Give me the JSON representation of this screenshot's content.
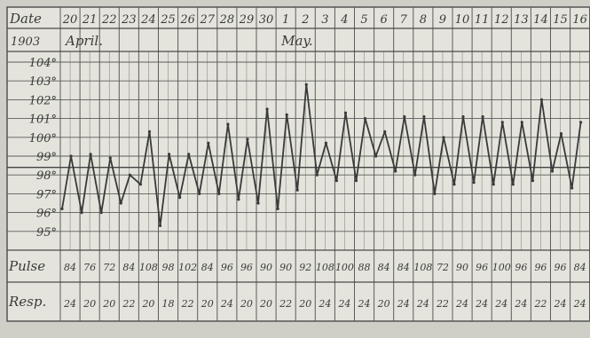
{
  "chart_data": {
    "type": "line",
    "row_labels": {
      "date": "Date",
      "year": "1903",
      "pulse": "Pulse",
      "resp": "Resp."
    },
    "months": [
      {
        "name": "April.",
        "start_index": 0
      },
      {
        "name": "May.",
        "start_index": 11
      }
    ],
    "dates": [
      "20",
      "21",
      "22",
      "23",
      "24",
      "25",
      "26",
      "27",
      "28",
      "29",
      "30",
      "1",
      "2",
      "3",
      "4",
      "5",
      "6",
      "7",
      "8",
      "9",
      "10",
      "11",
      "12",
      "13",
      "14",
      "15",
      "16"
    ],
    "y_ticks": [
      "104°",
      "103°",
      "102°",
      "101°",
      "100°",
      "99°",
      "98°",
      "97°",
      "96°",
      "95°"
    ],
    "ylim": [
      95,
      104
    ],
    "y_unit": "°F",
    "series": [
      {
        "values": [
          [
            96.2,
            99.0
          ],
          [
            96.0,
            99.1
          ],
          [
            96.0,
            98.9
          ],
          [
            96.5,
            98.0
          ],
          [
            97.5,
            100.3
          ],
          [
            95.3,
            99.1
          ],
          [
            96.8,
            99.1
          ],
          [
            97.0,
            99.7
          ],
          [
            97.0,
            100.7
          ],
          [
            96.7,
            99.9
          ],
          [
            96.5,
            101.5
          ],
          [
            96.2,
            101.2
          ],
          [
            97.2,
            102.8
          ],
          [
            98.0,
            99.7
          ],
          [
            97.7,
            101.3
          ],
          [
            97.7,
            101.0
          ],
          [
            99.0,
            100.3
          ],
          [
            98.2,
            101.1
          ],
          [
            98.0,
            101.1
          ],
          [
            97.0,
            100.0
          ],
          [
            97.5,
            101.1
          ],
          [
            97.6,
            101.1
          ],
          [
            97.5,
            100.8
          ],
          [
            97.5,
            100.8
          ],
          [
            97.7,
            102.0
          ],
          [
            98.2,
            100.2
          ],
          [
            97.3,
            100.8
          ]
        ]
      }
    ],
    "pulse": [
      "84",
      "76",
      "72",
      "84",
      "108",
      "98",
      "102",
      "84",
      "96",
      "96",
      "90",
      "90",
      "92",
      "108",
      "100",
      "88",
      "84",
      "84",
      "108",
      "72",
      "90",
      "96",
      "100",
      "96",
      "96",
      "96",
      "84"
    ],
    "resp": [
      "24",
      "20",
      "20",
      "22",
      "20",
      "18",
      "22",
      "20",
      "24",
      "20",
      "20",
      "22",
      "20",
      "24",
      "24",
      "24",
      "20",
      "24",
      "24",
      "22",
      "24",
      "24",
      "24",
      "24",
      "22",
      "24",
      "24"
    ]
  }
}
